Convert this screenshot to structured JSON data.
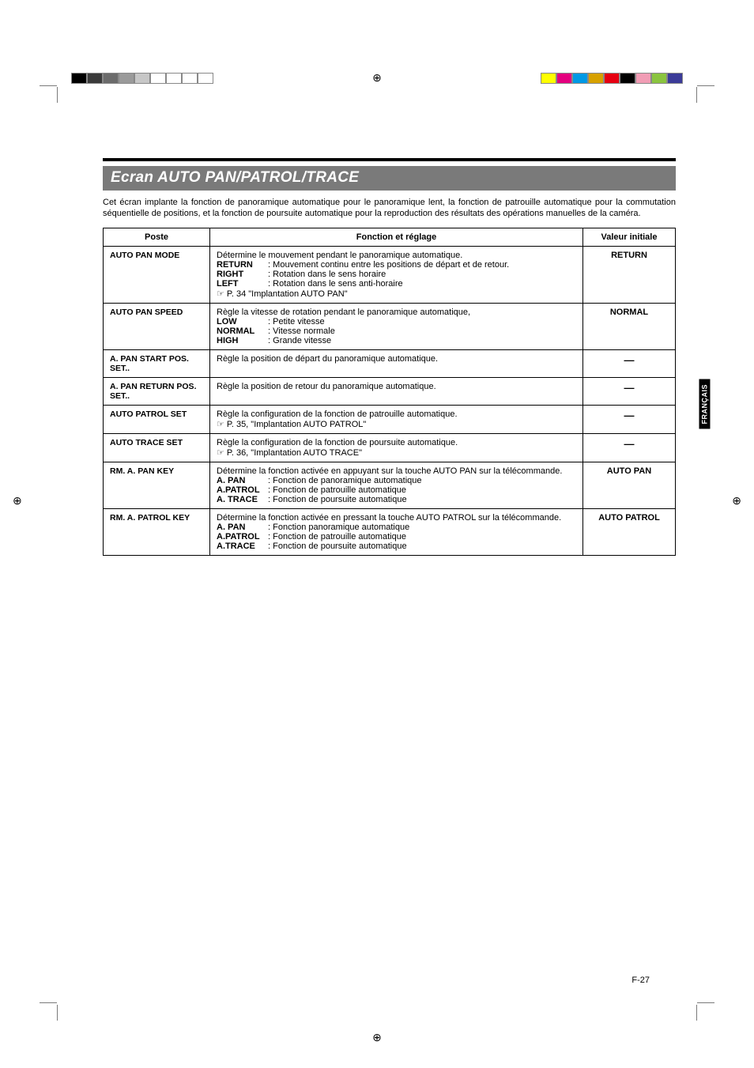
{
  "print_marks": {
    "left_colors": [
      "#000000",
      "#3a3a3a",
      "#6b6b6b",
      "#9a9a9a",
      "#c7c7c7",
      "#ffffff",
      "#ffffff",
      "#ffffff",
      "#ffffff"
    ],
    "right_colors": [
      "#ffff00",
      "#e4007f",
      "#0099e5",
      "#d7a100",
      "#e60012",
      "#000000",
      "#f19db5",
      "#8ac43f",
      "#3b3b98"
    ]
  },
  "side_tab": "FRANÇAIS",
  "page_number": "F-27",
  "title": "Ecran AUTO PAN/PATROL/TRACE",
  "intro": "Cet écran implante la fonction de panoramique automatique pour le panoramique lent, la fonction de patrouille automatique pour la commutation séquentielle de positions, et la fonction de poursuite automatique pour la reproduction des résultats des opérations manuelles de la caméra.",
  "table": {
    "headers": {
      "item": "Poste",
      "func": "Fonction et réglage",
      "val": "Valeur initiale"
    },
    "rows": [
      {
        "item": "AUTO PAN MODE",
        "lead": "Détermine le mouvement pendant le panoramique automatique.",
        "opts": [
          {
            "k": "RETURN",
            "v": ": Mouvement continu entre les positions de départ et de retour."
          },
          {
            "k": "RIGHT",
            "v": ": Rotation dans le sens horaire"
          },
          {
            "k": "LEFT",
            "v": ": Rotation dans le sens anti-horaire"
          }
        ],
        "ref": "☞ P. 34  \"Implantation AUTO PAN\"",
        "val": "RETURN"
      },
      {
        "item": "AUTO PAN SPEED",
        "lead": "Règle la vitesse de rotation pendant le panoramique automatique,",
        "opts": [
          {
            "k": "LOW",
            "v": ": Petite vitesse"
          },
          {
            "k": "NORMAL",
            "v": ": Vitesse normale"
          },
          {
            "k": "HIGH",
            "v": ": Grande vitesse"
          }
        ],
        "val": "NORMAL"
      },
      {
        "item": "A. PAN START POS. SET..",
        "lead": "Règle la position de départ du panoramique automatique.",
        "val": "—"
      },
      {
        "item": "A. PAN RETURN POS. SET..",
        "lead": "Règle la position de retour du panoramique automatique.",
        "val": "—"
      },
      {
        "item": "AUTO PATROL SET",
        "lead": "Règle la configuration de la fonction de patrouille automatique.",
        "ref": "☞ P. 35, \"Implantation AUTO PATROL\"",
        "val": "—"
      },
      {
        "item": "AUTO TRACE SET",
        "lead": "Règle la configuration de la fonction de poursuite automatique.",
        "ref": "☞ P. 36, \"Implantation AUTO TRACE\"",
        "val": "—"
      },
      {
        "item": "RM. A. PAN KEY",
        "lead": "Détermine la fonction activée en appuyant sur la touche AUTO PAN sur la télécommande.",
        "lead_justify": true,
        "opts": [
          {
            "k": "A. PAN",
            "v": ": Fonction de panoramique automatique"
          },
          {
            "k": "A.PATROL",
            "v": ": Fonction de patrouille automatique"
          },
          {
            "k": "A. TRACE",
            "v": ": Fonction de poursuite automatique"
          }
        ],
        "val": "AUTO PAN"
      },
      {
        "item": "RM. A. PATROL KEY",
        "lead": "Détermine la fonction activée en pressant la touche AUTO PATROL sur la télécommande.",
        "lead_justify": true,
        "opts": [
          {
            "k": "A. PAN",
            "v": ": Fonction panoramique automatique"
          },
          {
            "k": "A.PATROL",
            "v": ": Fonction de patrouille automatique"
          },
          {
            "k": "A.TRACE",
            "v": ": Fonction de poursuite automatique"
          }
        ],
        "val": "AUTO PATROL"
      }
    ]
  }
}
